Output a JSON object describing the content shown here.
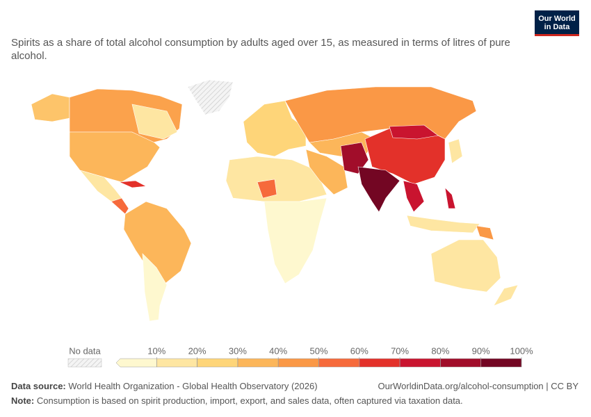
{
  "header": {
    "subtitle": "Spirits as a share of total alcohol consumption by adults aged over 15, as measured in terms of litres of pure alcohol.",
    "logo": [
      "Our World",
      "in Data"
    ]
  },
  "legend": {
    "no_data": "No data",
    "ticks": [
      {
        "value": 10,
        "label": "10%"
      },
      {
        "value": 20,
        "label": "20%"
      },
      {
        "value": 30,
        "label": "30%"
      },
      {
        "value": 40,
        "label": "40%"
      },
      {
        "value": 50,
        "label": "50%"
      },
      {
        "value": 60,
        "label": "60%"
      },
      {
        "value": 70,
        "label": "70%"
      },
      {
        "value": 80,
        "label": "80%"
      },
      {
        "value": 90,
        "label": "90%"
      },
      {
        "value": 100,
        "label": "100%"
      }
    ],
    "colors": [
      "#fef8cf",
      "#fee6a2",
      "#fed579",
      "#fcb65a",
      "#fa9846",
      "#f66a3b",
      "#e3312a",
      "#c9142f",
      "#a10d2a",
      "#730623"
    ]
  },
  "footer": {
    "source_label": "Data source:",
    "source": "World Health Organization - Global Health Observatory (2026)",
    "url": "OurWorldinData.org/alcohol-consumption | CC BY",
    "note_label": "Note:",
    "note": "Consumption is based on spirit production, import, export, and sales data, often captured via taxation data."
  }
}
